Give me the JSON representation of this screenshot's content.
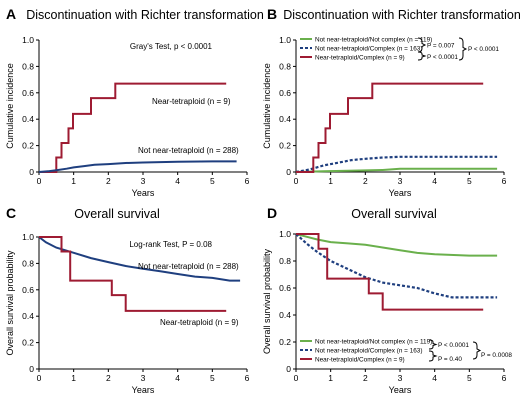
{
  "chart_data": [
    {
      "panel": "A",
      "type": "line",
      "title": "Discontinuation with Richter transformation",
      "xlabel": "Years",
      "ylabel": "Cumulative incidence",
      "xlim": [
        0,
        6
      ],
      "ylim": [
        0,
        1.0
      ],
      "xticks": [
        "0",
        "1",
        "2",
        "3",
        "4",
        "5",
        "6"
      ],
      "yticks": [
        "0",
        "0.2",
        "0.4",
        "0.6",
        "0.8",
        "1.0"
      ],
      "annotations": [
        "Gray's Test, p < 0.0001"
      ],
      "series": [
        {
          "name": "Near-tetraploid (n = 9)",
          "color": "#9e1b32",
          "dashed": false,
          "x": [
            0,
            0.5,
            0.5,
            0.65,
            0.65,
            0.85,
            0.85,
            0.98,
            0.98,
            1.5,
            1.5,
            2.2,
            2.2,
            5.4
          ],
          "y": [
            0,
            0,
            0.11,
            0.11,
            0.22,
            0.22,
            0.33,
            0.33,
            0.44,
            0.44,
            0.56,
            0.56,
            0.67,
            0.67
          ]
        },
        {
          "name": "Not near-tetraploid (n = 288)",
          "color": "#1f3f7f",
          "dashed": false,
          "x": [
            0,
            0.3,
            0.5,
            0.8,
            1.0,
            1.3,
            1.6,
            2.0,
            2.5,
            3.0,
            3.5,
            4.0,
            5.0,
            5.7
          ],
          "y": [
            0,
            0.007,
            0.014,
            0.025,
            0.035,
            0.045,
            0.055,
            0.06,
            0.068,
            0.072,
            0.075,
            0.078,
            0.08,
            0.08
          ]
        }
      ]
    },
    {
      "panel": "B",
      "type": "line",
      "title": "Discontinuation with Richter transformation",
      "xlabel": "Years",
      "ylabel": "Cumulative incidence",
      "xlim": [
        0,
        6
      ],
      "ylim": [
        0,
        1.0
      ],
      "xticks": [
        "0",
        "1",
        "2",
        "3",
        "4",
        "5",
        "6"
      ],
      "yticks": [
        "0",
        "0.2",
        "0.4",
        "0.6",
        "0.8",
        "1.0"
      ],
      "pvalues": [
        "P = 0.007",
        "P < 0.0001",
        "P < 0.0001"
      ],
      "series": [
        {
          "name": "Not near-tetraploid/Not complex (n = 119)",
          "color": "#6ab04c",
          "dashed": false,
          "x": [
            0,
            0.8,
            1.5,
            2.5,
            3.0,
            4.0,
            5.8
          ],
          "y": [
            0,
            0.005,
            0.01,
            0.015,
            0.025,
            0.025,
            0.025
          ]
        },
        {
          "name": "Not near-tetraploid/Complex (n = 163)",
          "color": "#1f3f7f",
          "dashed": true,
          "x": [
            0,
            0.4,
            0.8,
            1.2,
            1.6,
            2.0,
            2.5,
            3.0,
            4.0,
            5.8
          ],
          "y": [
            0,
            0.02,
            0.05,
            0.07,
            0.09,
            0.1,
            0.11,
            0.115,
            0.115,
            0.115
          ]
        },
        {
          "name": "Near-tetraploid/Complex (n = 9)",
          "color": "#9e1b32",
          "dashed": false,
          "x": [
            0,
            0.5,
            0.5,
            0.65,
            0.65,
            0.85,
            0.85,
            0.98,
            0.98,
            1.5,
            1.5,
            2.2,
            2.2,
            5.4
          ],
          "y": [
            0,
            0,
            0.11,
            0.11,
            0.22,
            0.22,
            0.33,
            0.33,
            0.44,
            0.44,
            0.56,
            0.56,
            0.67,
            0.67
          ]
        }
      ]
    },
    {
      "panel": "C",
      "type": "line",
      "title": "Overall survival",
      "xlabel": "Years",
      "ylabel": "Overall survival probability",
      "xlim": [
        0,
        6
      ],
      "ylim": [
        0,
        1.0
      ],
      "xticks": [
        "0",
        "1",
        "2",
        "3",
        "4",
        "5",
        "6"
      ],
      "yticks": [
        "0",
        "0.2",
        "0.4",
        "0.6",
        "0.8",
        "1.0"
      ],
      "annotations": [
        "Log-rank Test, P = 0.08"
      ],
      "series": [
        {
          "name": "Not near-tetraploid (n = 288)",
          "color": "#1f3f7f",
          "dashed": false,
          "x": [
            0,
            0.2,
            0.5,
            1.0,
            1.5,
            2.0,
            2.5,
            3.0,
            3.5,
            4.0,
            4.5,
            5.0,
            5.5,
            5.8
          ],
          "y": [
            1.0,
            0.96,
            0.92,
            0.88,
            0.84,
            0.81,
            0.78,
            0.76,
            0.74,
            0.72,
            0.7,
            0.69,
            0.67,
            0.67
          ]
        },
        {
          "name": "Near-tetraploid (n = 9)",
          "color": "#9e1b32",
          "dashed": false,
          "x": [
            0,
            0.65,
            0.65,
            0.9,
            0.9,
            2.1,
            2.1,
            2.5,
            2.5,
            5.4
          ],
          "y": [
            1.0,
            1.0,
            0.89,
            0.89,
            0.67,
            0.67,
            0.56,
            0.56,
            0.44,
            0.44
          ]
        }
      ]
    },
    {
      "panel": "D",
      "type": "line",
      "title": "Overall survival",
      "xlabel": "Years",
      "ylabel": "Overall survival probability",
      "xlim": [
        0,
        6
      ],
      "ylim": [
        0,
        1.0
      ],
      "xticks": [
        "0",
        "1",
        "2",
        "3",
        "4",
        "5",
        "6"
      ],
      "yticks": [
        "0",
        "0.2",
        "0.4",
        "0.6",
        "0.8",
        "1.0"
      ],
      "pvalues": [
        "P < 0.0001",
        "P = 0.40",
        "P = 0.0008"
      ],
      "series": [
        {
          "name": "Not near-tetraploid/Not complex (n = 119)",
          "color": "#6ab04c",
          "dashed": false,
          "x": [
            0,
            0.3,
            0.6,
            1.0,
            1.5,
            2.0,
            2.5,
            3.0,
            3.5,
            4.0,
            5.0,
            5.8
          ],
          "y": [
            1.0,
            0.98,
            0.96,
            0.94,
            0.93,
            0.92,
            0.9,
            0.88,
            0.86,
            0.85,
            0.84,
            0.84
          ]
        },
        {
          "name": "Not near-tetraploid/Complex (n = 163)",
          "color": "#1f3f7f",
          "dashed": true,
          "x": [
            0,
            0.3,
            0.6,
            1.0,
            1.5,
            2.0,
            2.5,
            3.0,
            3.5,
            4.0,
            4.5,
            5.0,
            5.8
          ],
          "y": [
            1.0,
            0.93,
            0.87,
            0.8,
            0.74,
            0.68,
            0.64,
            0.62,
            0.6,
            0.56,
            0.53,
            0.53,
            0.53
          ]
        },
        {
          "name": "Near-tetraploid/Complex (n = 9)",
          "color": "#9e1b32",
          "dashed": false,
          "x": [
            0,
            0.65,
            0.65,
            0.9,
            0.9,
            2.1,
            2.1,
            2.5,
            2.5,
            5.4
          ],
          "y": [
            1.0,
            1.0,
            0.89,
            0.89,
            0.67,
            0.67,
            0.56,
            0.56,
            0.44,
            0.44
          ]
        }
      ]
    }
  ]
}
